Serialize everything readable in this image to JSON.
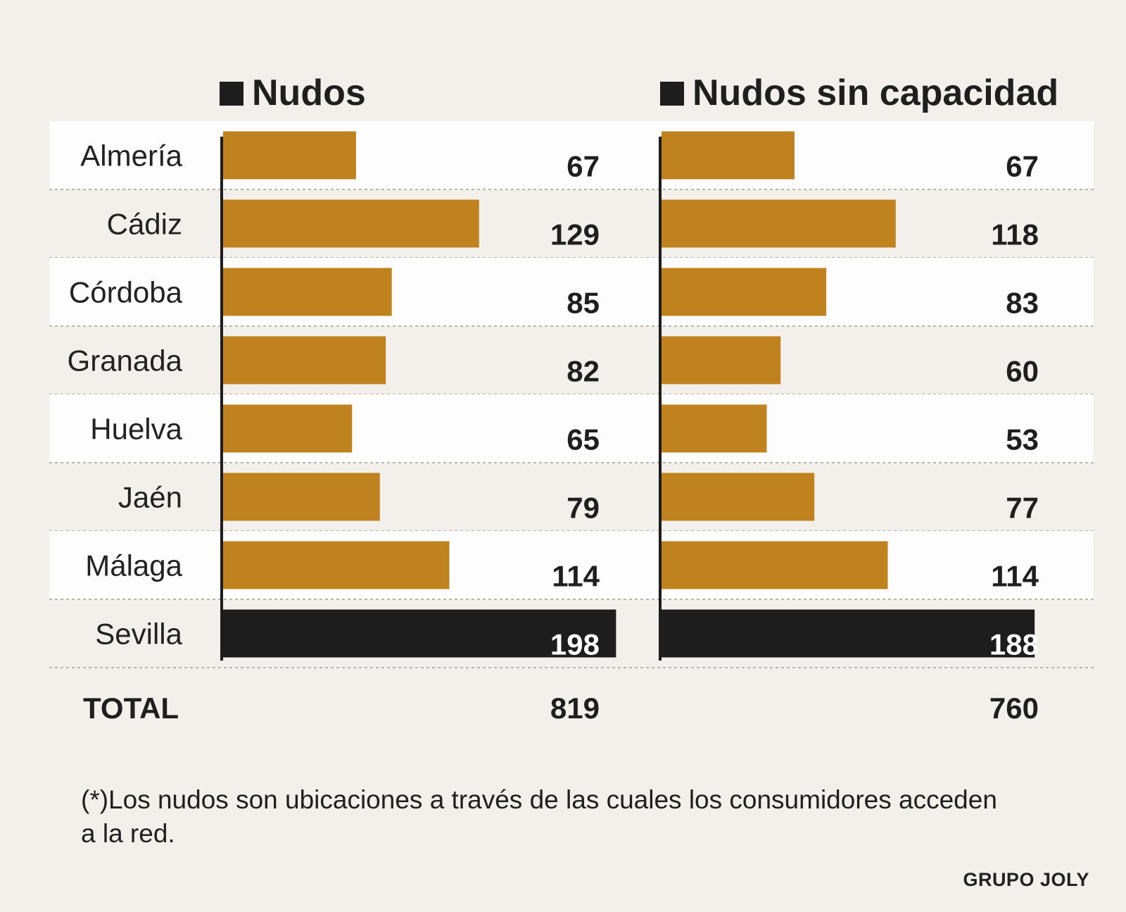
{
  "chart_data": {
    "type": "bar",
    "orientation": "horizontal",
    "categories": [
      "Almería",
      "Cádiz",
      "Córdoba",
      "Granada",
      "Huelva",
      "Jaén",
      "Málaga",
      "Sevilla"
    ],
    "highlight_category": "Sevilla",
    "series": [
      {
        "name": "Nudos",
        "values": [
          67,
          129,
          85,
          82,
          65,
          79,
          114,
          198
        ],
        "total": 819
      },
      {
        "name": "Nudos sin capacidad",
        "values": [
          67,
          118,
          83,
          60,
          53,
          77,
          114,
          188
        ],
        "total": 760
      }
    ],
    "total_label": "TOTAL",
    "xlim": [
      0,
      200
    ]
  },
  "note": "(*)Los nudos son ubicaciones a través de las cuales los consumidores acceden a la red.",
  "source": "GRUPO JOLY",
  "colors": {
    "background": "#f3f0ec",
    "stripe": "#fdfdfd",
    "bar": "#bf821f",
    "highlight_bar": "#1d1d1d",
    "axis": "#1d1d1d",
    "divider": "#b8b4ae"
  }
}
